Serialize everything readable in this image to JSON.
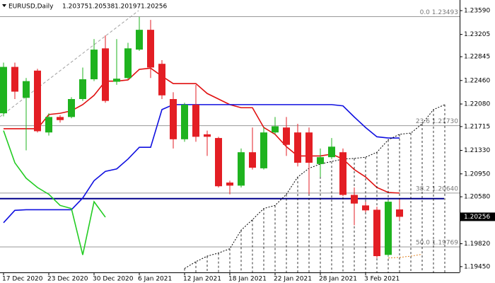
{
  "chart_data": {
    "type": "candlestick",
    "title": "EURUSD,Daily",
    "categories": [
      "17 Dec 2020",
      null,
      null,
      null,
      "23 Dec 2020",
      null,
      null,
      null,
      "30 Dec 2020",
      null,
      null,
      null,
      "6 Jan 2021",
      null,
      null,
      null,
      "12 Jan 2021",
      null,
      null,
      null,
      "18 Jan 2021",
      null,
      null,
      null,
      "22 Jan 2021",
      null,
      null,
      null,
      "28 Jan 2021",
      null,
      null,
      null,
      "3 Feb 2021",
      null,
      null,
      null,
      null,
      null,
      null,
      null
    ],
    "open": [
      1.2193,
      1.2268,
      1.2218,
      1.2262,
      1.2162,
      1.2187,
      1.2187,
      1.2216,
      1.2248,
      1.2298,
      1.2244,
      1.225,
      1.2296,
      1.2328,
      1.2273,
      1.2216,
      1.2151,
      1.2207,
      1.2159,
      1.2153,
      1.2081,
      1.2076,
      1.213,
      1.2104,
      1.2162,
      1.217,
      1.2162,
      1.2162,
      1.2111,
      1.2122,
      1.213,
      1.2061,
      1.2044,
      1.2037,
      1.1964,
      1.20375,
      null,
      null,
      null,
      null
    ],
    "high": [
      1.2275,
      1.2275,
      1.225,
      1.2265,
      1.2193,
      1.219,
      1.2219,
      1.2267,
      1.2313,
      1.2319,
      1.2313,
      1.2307,
      1.2349,
      1.2344,
      1.2279,
      1.2227,
      1.221,
      1.2239,
      1.2165,
      1.2155,
      1.2084,
      1.2136,
      1.217,
      1.217,
      1.2187,
      1.2187,
      1.2176,
      1.217,
      1.2136,
      1.2153,
      1.2136,
      1.2073,
      1.205,
      1.2042,
      1.2052,
      1.20538,
      null,
      null,
      null,
      null
    ],
    "low": [
      1.2188,
      1.2216,
      1.2133,
      1.2162,
      1.2157,
      1.2178,
      1.2185,
      1.2213,
      1.2245,
      1.221,
      1.2239,
      1.2248,
      1.2294,
      1.225,
      1.2216,
      1.2136,
      1.2147,
      1.2147,
      1.2124,
      1.2073,
      1.2062,
      1.2073,
      1.2102,
      1.2102,
      1.2159,
      1.2124,
      1.2107,
      1.2062,
      1.209,
      1.2119,
      1.2059,
      1.2012,
      1.2033,
      1.1959,
      1.1962,
      1.20197,
      null,
      null,
      null,
      null
    ],
    "close": [
      1.2268,
      1.2228,
      1.2245,
      1.2164,
      1.2187,
      1.2182,
      1.2216,
      1.2248,
      1.2296,
      1.2213,
      1.2249,
      1.2298,
      1.2328,
      1.2267,
      1.2222,
      1.2151,
      1.2207,
      1.2155,
      1.2155,
      1.2075,
      1.2076,
      1.213,
      1.2105,
      1.2162,
      1.2172,
      1.2142,
      1.2113,
      1.2113,
      1.2122,
      1.2139,
      1.2061,
      1.2047,
      1.2036,
      1.1962,
      1.205,
      1.20256,
      null,
      null,
      null,
      null
    ],
    "up_color": "#1fb31f",
    "down_color": "#e31e24",
    "series": [
      {
        "color": "#e01010",
        "style": "solid",
        "values": [
          1.2168,
          1.2168,
          1.2168,
          1.2168,
          1.2191,
          1.2193,
          1.2197,
          1.2207,
          1.2222,
          1.2245,
          1.2245,
          1.2247,
          1.2264,
          1.2266,
          1.2253,
          1.2241,
          1.2241,
          1.2241,
          1.2225,
          1.2216,
          1.2207,
          1.2202,
          1.2202,
          1.217,
          1.2159,
          1.2139,
          1.2124,
          1.2124,
          1.2124,
          1.2127,
          1.2119,
          1.2102,
          1.209,
          1.2073,
          1.2065,
          1.2064,
          null,
          null,
          null,
          null
        ]
      },
      {
        "color": "#1010e0",
        "style": "solid",
        "values": [
          1.2016,
          1.2036,
          1.2037,
          1.2037,
          1.2037,
          1.2037,
          1.2037,
          1.2056,
          1.2084,
          1.2099,
          1.2103,
          1.2119,
          1.2138,
          1.2138,
          1.2199,
          1.2207,
          1.2207,
          1.2207,
          1.2207,
          1.2207,
          1.2207,
          1.2207,
          1.2207,
          1.2207,
          1.2207,
          1.2207,
          1.2207,
          1.2207,
          1.2207,
          1.2207,
          1.2205,
          1.2187,
          1.217,
          1.2155,
          1.2153,
          1.2153,
          null,
          null,
          null,
          null
        ]
      },
      {
        "color": "#22cc22",
        "style": "solid",
        "values": [
          1.2165,
          1.2113,
          1.2088,
          1.2073,
          1.2062,
          1.2044,
          1.2039,
          1.1964,
          1.205,
          1.2025,
          null,
          null,
          null,
          null,
          null,
          null,
          null,
          null,
          null,
          null,
          null,
          null,
          null,
          null,
          null,
          null,
          null,
          null,
          null,
          null,
          null,
          null,
          null,
          null,
          null,
          null,
          null,
          null,
          null,
          null
        ]
      },
      {
        "color": "#000000",
        "style": "dotted",
        "fill_down": true,
        "values": [
          null,
          null,
          null,
          null,
          null,
          null,
          null,
          null,
          null,
          null,
          null,
          null,
          null,
          null,
          null,
          null,
          1.1942,
          1.1953,
          1.1962,
          1.1967,
          1.1974,
          1.2004,
          1.2021,
          1.2039,
          1.2044,
          1.2062,
          1.209,
          1.2104,
          1.2111,
          1.2115,
          1.2119,
          1.212,
          1.2122,
          1.213,
          1.215,
          1.2159,
          1.2161,
          1.2176,
          1.2199,
          1.2207
        ]
      },
      {
        "color": "#e08020",
        "style": "dotted",
        "values": [
          null,
          null,
          null,
          null,
          null,
          null,
          null,
          null,
          null,
          null,
          null,
          null,
          null,
          null,
          null,
          null,
          null,
          null,
          null,
          null,
          null,
          null,
          null,
          null,
          null,
          null,
          null,
          null,
          null,
          null,
          null,
          null,
          null,
          null,
          1.1959,
          1.196,
          1.1962,
          1.1965,
          null,
          null
        ]
      }
    ],
    "hline": 1.2055,
    "hline_color": "#00008b",
    "fib_color": "#9a9a9a",
    "annotations": [
      {
        "value": 1.23493,
        "label": "0.0 1.23493"
      },
      {
        "value": 1.2173,
        "label": "23.6 1.21730"
      },
      {
        "value": 1.2064,
        "label": "38.2 1.20640"
      },
      {
        "value": 1.19769,
        "label": "50.0 1.19769"
      }
    ],
    "ylim": [
      1.19357,
      1.23762
    ],
    "yticks": [
      {
        "value": 1.2359,
        "label": "1.23590"
      },
      1.23205,
      1.22845,
      {
        "value": 1.2246,
        "label": "1.22460"
      },
      {
        "value": 1.2208,
        "label": "1.22080"
      },
      1.21715,
      {
        "value": 1.2133,
        "label": "1.21330"
      },
      {
        "value": 1.2095,
        "label": "1.20950"
      },
      {
        "value": 1.2058,
        "label": "1.20580"
      },
      {
        "value": 1.1982,
        "label": "1.19820"
      },
      {
        "value": 1.1945,
        "label": "1.19450"
      }
    ]
  }
}
